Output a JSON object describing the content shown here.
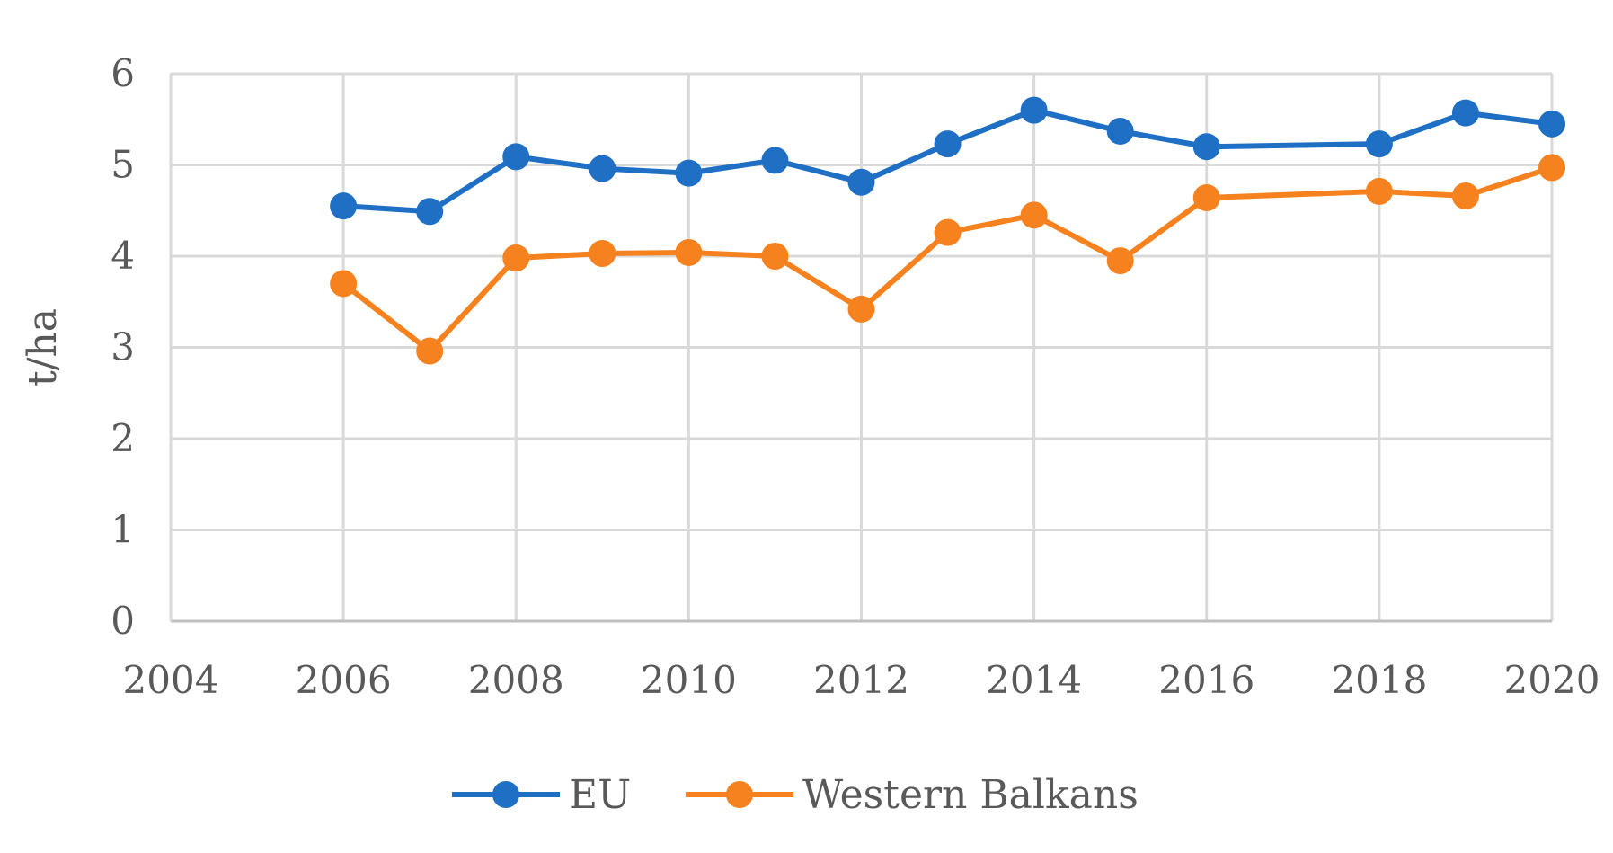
{
  "chart_data": {
    "type": "line",
    "title": "",
    "xlabel": "",
    "ylabel": "t/ha",
    "xlim": [
      2004,
      2020
    ],
    "ylim": [
      0,
      6
    ],
    "x_ticks": [
      2004,
      2006,
      2008,
      2010,
      2012,
      2014,
      2016,
      2018,
      2020
    ],
    "y_ticks": [
      0,
      1,
      2,
      3,
      4,
      5,
      6
    ],
    "grid": true,
    "legend_position": "bottom",
    "series": [
      {
        "name": "EU",
        "color": "#1F6FC5",
        "x": [
          2006,
          2007,
          2008,
          2009,
          2010,
          2011,
          2012,
          2013,
          2014,
          2015,
          2016,
          2018,
          2019,
          2020
        ],
        "y": [
          4.55,
          4.49,
          5.09,
          4.96,
          4.91,
          5.05,
          4.81,
          5.23,
          5.6,
          5.37,
          5.2,
          5.23,
          5.57,
          5.45
        ]
      },
      {
        "name": "Western Balkans",
        "color": "#F5821F",
        "x": [
          2006,
          2007,
          2008,
          2009,
          2010,
          2011,
          2012,
          2013,
          2014,
          2015,
          2016,
          2018,
          2019,
          2020
        ],
        "y": [
          3.7,
          2.96,
          3.98,
          4.03,
          4.04,
          4.0,
          3.42,
          4.26,
          4.45,
          3.95,
          4.64,
          4.71,
          4.66,
          4.97
        ]
      }
    ]
  }
}
